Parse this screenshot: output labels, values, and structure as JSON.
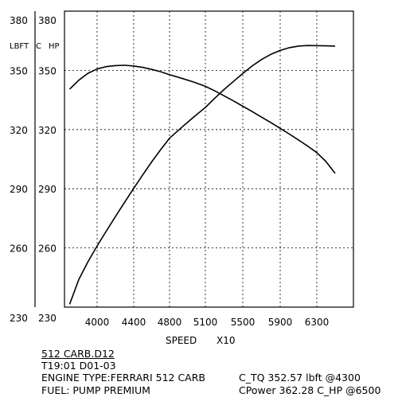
{
  "chart_data": {
    "type": "line",
    "x_ticks": [
      4000,
      4400,
      4800,
      5100,
      5500,
      5900,
      6300
    ],
    "y_ticks": [
      230,
      260,
      290,
      320,
      350,
      380
    ],
    "ylim": [
      230,
      380
    ],
    "unit_labels": {
      "left": "LBFT",
      "middle": "C",
      "right": "HP"
    },
    "xlabel": "SPEED",
    "x_scale_label": "X10",
    "grid": true,
    "series": [
      {
        "id": "torque",
        "x": [
          3700,
          3800,
          3900,
          4000,
          4100,
          4200,
          4300,
          4400,
          4500,
          4600,
          4700,
          4800,
          4900,
          5000,
          5100,
          5200,
          5300,
          5400,
          5500,
          5600,
          5700,
          5800,
          5900,
          6000,
          6100,
          6200,
          6300,
          6400,
          6500
        ],
        "y": [
          340.5,
          345.0,
          348.5,
          350.7,
          351.9,
          352.4,
          352.57,
          352.2,
          351.5,
          350.5,
          349.3,
          347.8,
          346.0,
          344.1,
          341.9,
          339.6,
          337.1,
          334.5,
          331.8,
          329.1,
          326.3,
          323.5,
          320.6,
          317.7,
          314.7,
          311.6,
          308.3,
          303.8,
          297.8
        ]
      },
      {
        "id": "power",
        "x": [
          3700,
          3800,
          3900,
          4000,
          4100,
          4200,
          4300,
          4400,
          4500,
          4600,
          4700,
          4800,
          4900,
          5000,
          5100,
          5200,
          5300,
          5400,
          5500,
          5600,
          5700,
          5800,
          5900,
          6000,
          6100,
          6200,
          6300,
          6400,
          6500
        ],
        "y": [
          231.5,
          244.0,
          253.0,
          261.0,
          268.5,
          275.9,
          283.1,
          290.2,
          297.0,
          303.6,
          309.8,
          315.6,
          321.0,
          326.2,
          331.2,
          335.9,
          340.3,
          344.4,
          348.4,
          352.2,
          355.5,
          358.1,
          360.1,
          361.5,
          362.3,
          362.6,
          362.5,
          362.4,
          362.28
        ]
      }
    ]
  },
  "info": {
    "file_name": "512 CARB.D12",
    "test_id": "T19:01 D01-03",
    "engine_type": "ENGINE TYPE:FERRARI 512 CARB",
    "fuel": "FUEL: PUMP PREMIUM",
    "torque_summary": "C_TQ 352.57 lbft @4300",
    "power_summary": "CPower 362.28 C_HP @6500"
  }
}
